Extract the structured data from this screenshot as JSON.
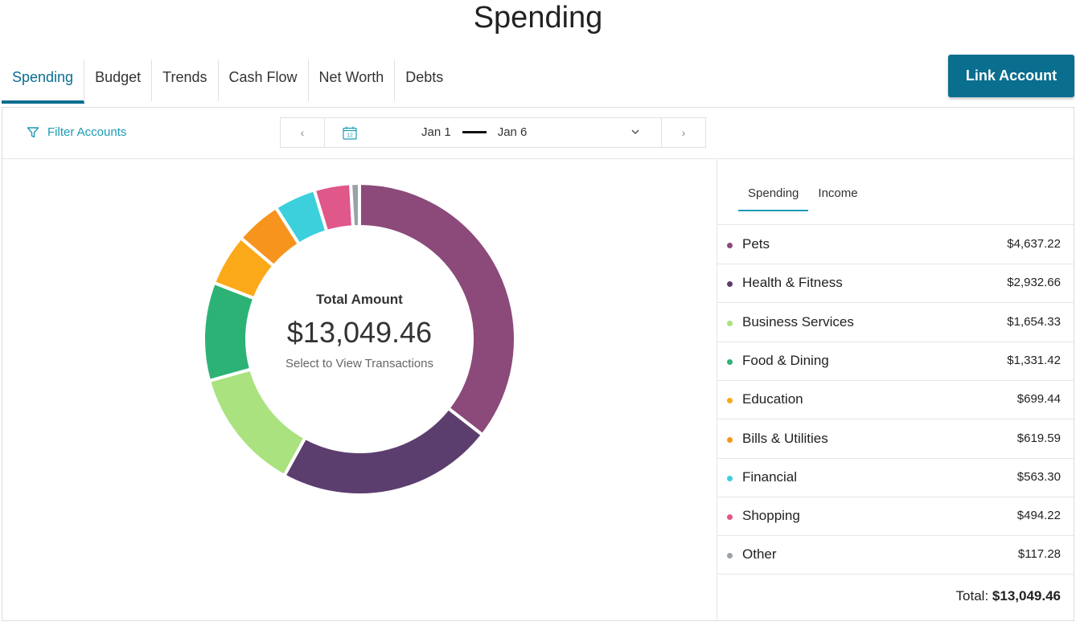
{
  "page": {
    "title": "Spending"
  },
  "tabs": [
    {
      "label": "Spending"
    },
    {
      "label": "Budget"
    },
    {
      "label": "Trends"
    },
    {
      "label": "Cash Flow"
    },
    {
      "label": "Net Worth"
    },
    {
      "label": "Debts"
    }
  ],
  "link_account": "Link Account",
  "toolbar": {
    "filter_label": "Filter Accounts",
    "calendar_icon_text": "12",
    "start_date": "Jan 1",
    "end_date": "Jan 6",
    "prev_icon": "‹",
    "next_icon": "›"
  },
  "donut": {
    "label": "Total Amount",
    "amount": "$13,049.46",
    "sub": "Select to View Transactions"
  },
  "side_tabs": [
    {
      "label": "Spending"
    },
    {
      "label": "Income"
    }
  ],
  "total_prefix": "Total:",
  "chart_data": {
    "type": "pie",
    "title": "Total Amount",
    "total": 13049.46,
    "series": [
      {
        "name": "Pets",
        "value": 4637.22,
        "display": "$4,637.22",
        "color": "#8b4a7a"
      },
      {
        "name": "Health & Fitness",
        "value": 2932.66,
        "display": "$2,932.66",
        "color": "#5c3e6e"
      },
      {
        "name": "Business Services",
        "value": 1654.33,
        "display": "$1,654.33",
        "color": "#a9e27f"
      },
      {
        "name": "Food & Dining",
        "value": 1331.42,
        "display": "$1,331.42",
        "color": "#2db276"
      },
      {
        "name": "Education",
        "value": 699.44,
        "display": "$699.44",
        "color": "#fba919"
      },
      {
        "name": "Bills & Utilities",
        "value": 619.59,
        "display": "$619.59",
        "color": "#f7941d"
      },
      {
        "name": "Financial",
        "value": 563.3,
        "display": "$563.30",
        "color": "#3ccfdc"
      },
      {
        "name": "Shopping",
        "value": 494.22,
        "display": "$494.22",
        "color": "#e0578a"
      },
      {
        "name": "Other",
        "value": 117.28,
        "display": "$117.28",
        "color": "#9aa2a8"
      }
    ]
  }
}
